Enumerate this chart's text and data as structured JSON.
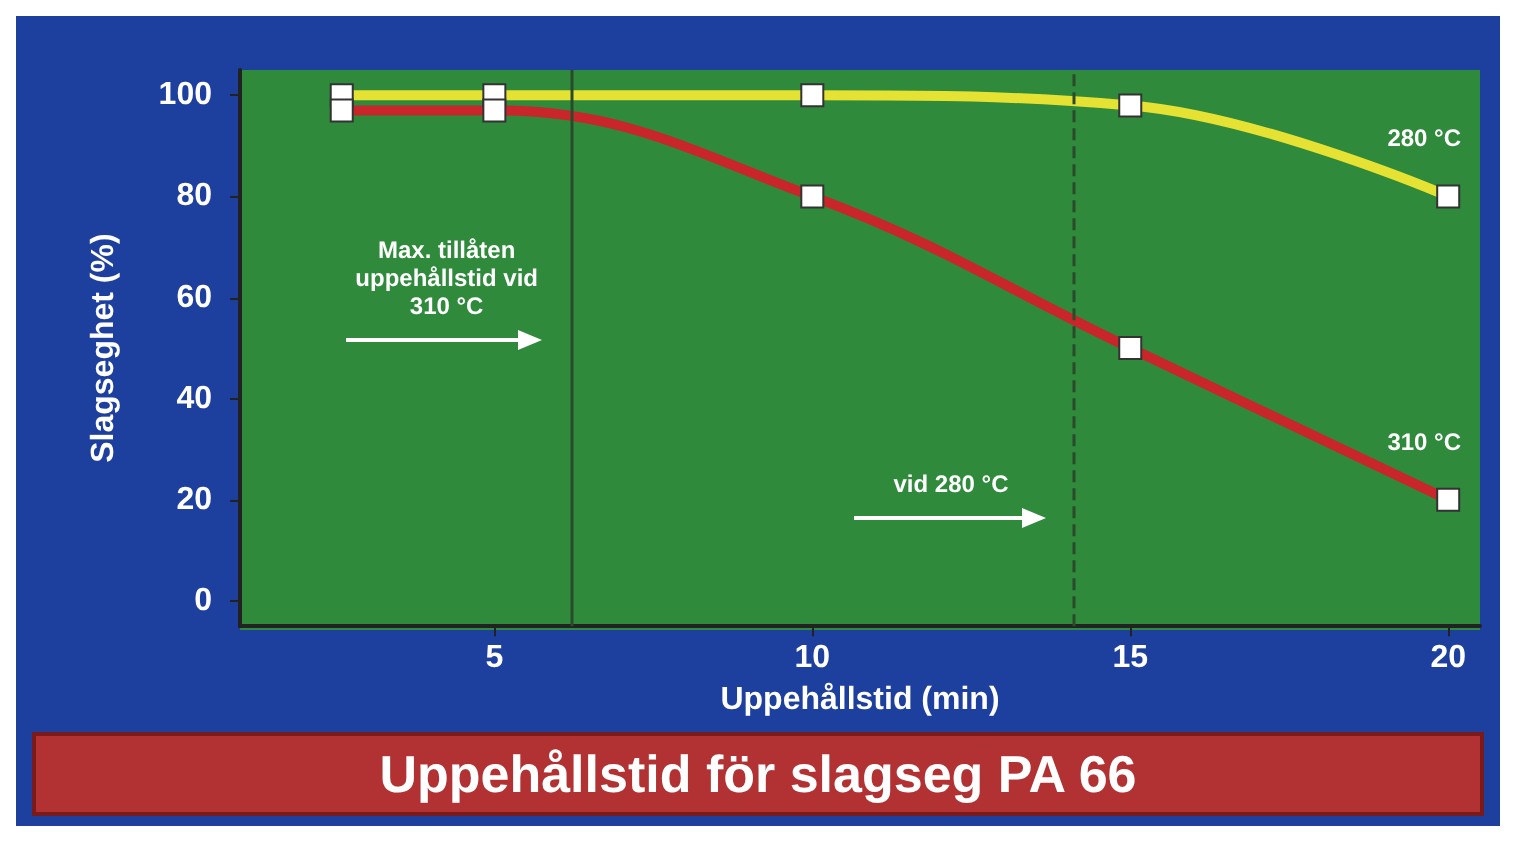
{
  "chart_data": {
    "type": "line",
    "title": "Uppehållstid för slagseg PA 66",
    "xlabel": "Uppehållstid (min)",
    "ylabel": "Slagseghet (%)",
    "xlim": [
      1,
      20.5
    ],
    "xticks": [
      5,
      10,
      15,
      20
    ],
    "ylim": [
      -5,
      105
    ],
    "yticks": [
      0,
      20,
      40,
      60,
      80,
      100
    ],
    "grid": false,
    "legend": false,
    "marker": "square",
    "line_style": "solid",
    "series": [
      {
        "name": "280 °C",
        "color": "#e6e233",
        "x": [
          2.6,
          5,
          10,
          15,
          20
        ],
        "values": [
          100,
          100,
          100,
          98,
          80
        ]
      },
      {
        "name": "310 °C",
        "color": "#c8262a",
        "x": [
          2.6,
          5,
          10,
          15,
          20
        ],
        "values": [
          97,
          97,
          80,
          50,
          20
        ]
      }
    ],
    "ref_lines": [
      {
        "axis": "x",
        "value": 6.2,
        "label": "Max. tillåten uppehållstid vid 310 °C",
        "color": "#2a4a2a"
      },
      {
        "axis": "x",
        "value": 14.1,
        "label": "vid 280 °C",
        "color": "#2a4a2a",
        "line_style": "dashed"
      }
    ]
  }
}
